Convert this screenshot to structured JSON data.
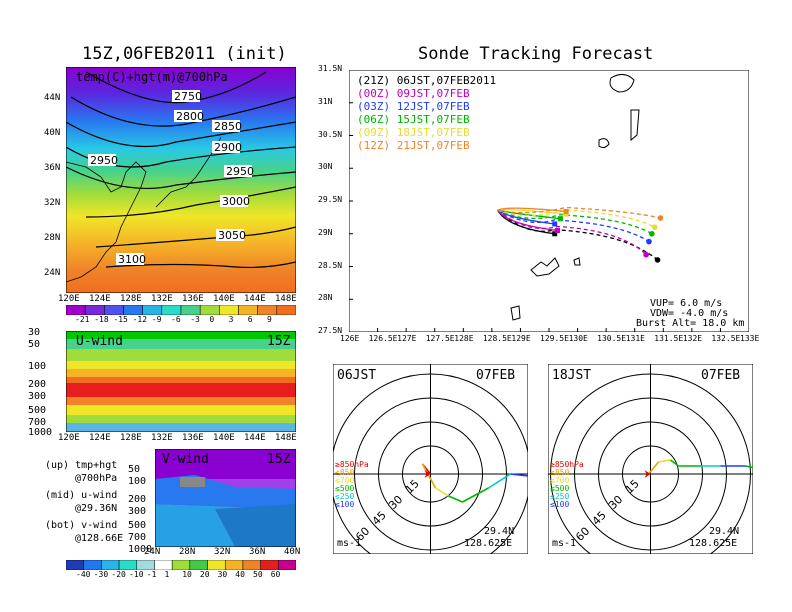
{
  "left": {
    "title": "15Z,06FEB2011 (init)",
    "map_label": "temp(C)+hgt(m)@700hPa",
    "lat_labels": [
      "44N",
      "40N",
      "36N",
      "32N",
      "28N",
      "24N"
    ],
    "lon_labels": [
      "120E",
      "124E",
      "128E",
      "132E",
      "136E",
      "140E",
      "144E",
      "148E"
    ],
    "contour_labels": [
      "2750",
      "2800",
      "2850",
      "2900",
      "2950",
      "2950",
      "3000",
      "3050",
      "3100"
    ],
    "temp_colorbar": [
      "-21",
      "-18",
      "-15",
      "-12",
      "-9",
      "-6",
      "-3",
      "0",
      "3",
      "6",
      "9"
    ],
    "u_label": "U-wind",
    "u_time": "15Z",
    "u_levels": [
      "30",
      "50",
      "100",
      "200",
      "300",
      "500",
      "700",
      "1000"
    ],
    "u_lon_labels": [
      "120E",
      "124E",
      "128E",
      "132E",
      "136E",
      "140E",
      "144E",
      "148E"
    ],
    "v_label": "V-wind",
    "v_time": "15Z",
    "v_levels": [
      "50",
      "100",
      "200",
      "300",
      "500",
      "700",
      "1000"
    ],
    "v_lat_labels": [
      "24N",
      "28N",
      "32N",
      "36N",
      "40N"
    ],
    "wind_colorbar": [
      "-40",
      "-30",
      "-20",
      "-10",
      "-1",
      "1",
      "10",
      "20",
      "30",
      "40",
      "50",
      "60"
    ],
    "legend": [
      {
        "a": "(up) tmp+hgt",
        "b": "@700hPa"
      },
      {
        "a": "(mid) u-wind",
        "b": "@29.36N"
      },
      {
        "a": "(bot) v-wind",
        "b": "@128.66E"
      }
    ]
  },
  "chart_data": [
    {
      "type": "line",
      "title": "Sonde Tracking Forecast",
      "x_ticks": [
        "126E",
        "126.5E",
        "127E",
        "127.5E",
        "128E",
        "128.5E",
        "129E",
        "129.5E",
        "130E",
        "130.5E",
        "131E",
        "131.5E",
        "132E",
        "132.5E",
        "133E"
      ],
      "y_ticks": [
        "27.5N",
        "28N",
        "28.5N",
        "29N",
        "29.5N",
        "30N",
        "30.5N",
        "31N",
        "31.5N"
      ],
      "xlim": [
        126,
        133
      ],
      "ylim": [
        27.5,
        31.5
      ],
      "launch": {
        "lon": 128.6,
        "lat": 29.36
      },
      "series": [
        {
          "name": "(21Z) 06JST,07FEB2011",
          "color": "#000000",
          "end_up": [
            129.6,
            29.0
          ],
          "end_dn": [
            131.4,
            28.6
          ]
        },
        {
          "name": "(00Z) 09JST,07FEB",
          "color": "#c000c0",
          "end_up": [
            129.65,
            29.05
          ],
          "end_dn": [
            131.2,
            28.68
          ]
        },
        {
          "name": "(03Z) 12JST,07FEB",
          "color": "#1e3cff",
          "end_up": [
            129.6,
            29.15
          ],
          "end_dn": [
            131.25,
            28.88
          ]
        },
        {
          "name": "(06Z) 15JST,07FEB",
          "color": "#00b400",
          "end_up": [
            129.7,
            29.23
          ],
          "end_dn": [
            131.3,
            29.0
          ]
        },
        {
          "name": "(09Z) 18JST,07FEB",
          "color": "#e6dc32",
          "end_up": [
            129.8,
            29.3
          ],
          "end_dn": [
            131.35,
            29.1
          ]
        },
        {
          "name": "(12Z) 21JST,07FEB",
          "color": "#f08228",
          "end_up": [
            129.8,
            29.34
          ],
          "end_dn": [
            131.45,
            29.24
          ]
        }
      ],
      "params": [
        "VUP= 6.0 m/s",
        "VDW= -4.0 m/s",
        "Burst Alt= 18.0 km"
      ]
    }
  ],
  "hodographs": [
    {
      "time": "06JST",
      "date": "07FEB",
      "lat": "29.4N",
      "lon": "128.625E",
      "unit": "ms-1"
    },
    {
      "time": "18JST",
      "date": "07FEB",
      "lat": "29.4N",
      "lon": "128.625E",
      "unit": "ms-1"
    }
  ],
  "hodo_ring_labels": [
    "15",
    "30",
    "45",
    "60"
  ],
  "hodo_levels": [
    {
      "label": "≥850hPa",
      "color": "#e60000"
    },
    {
      "label": "≤850",
      "color": "#f0a000"
    },
    {
      "label": "≤700",
      "color": "#e6dc32"
    },
    {
      "label": "≤500",
      "color": "#00b400"
    },
    {
      "label": "≤250",
      "color": "#00c8c8"
    },
    {
      "label": "≤100",
      "color": "#1e3cff"
    }
  ]
}
